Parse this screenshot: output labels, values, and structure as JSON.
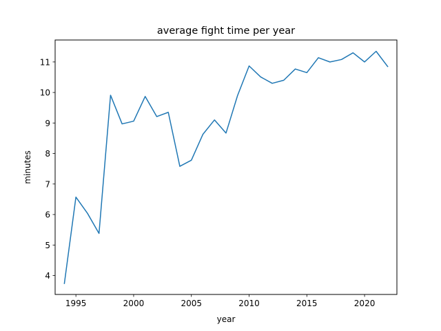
{
  "chart_data": {
    "type": "line",
    "title": "average fight time per year",
    "xlabel": "year",
    "ylabel": "minutes",
    "xlim": [
      1993.2,
      2022.8
    ],
    "ylim": [
      3.38,
      11.72
    ],
    "xticks": [
      1995,
      2000,
      2005,
      2010,
      2015,
      2020
    ],
    "yticks": [
      4,
      5,
      6,
      7,
      8,
      9,
      10,
      11
    ],
    "grid": false,
    "legend": "none",
    "series": [
      {
        "color": "#1f77b4",
        "x": [
          1994,
          1995,
          1996,
          1997,
          1998,
          1999,
          2000,
          2001,
          2002,
          2003,
          2004,
          2005,
          2006,
          2007,
          2008,
          2009,
          2010,
          2011,
          2012,
          2013,
          2014,
          2015,
          2016,
          2017,
          2018,
          2019,
          2020,
          2021,
          2022
        ],
        "y": [
          3.74,
          6.57,
          6.04,
          5.38,
          9.91,
          8.97,
          9.06,
          9.87,
          9.21,
          9.35,
          7.58,
          7.78,
          8.63,
          9.1,
          8.67,
          9.9,
          10.87,
          10.51,
          10.3,
          10.4,
          10.77,
          10.65,
          11.14,
          11.0,
          11.08,
          11.3,
          11.0,
          11.35,
          10.85
        ]
      }
    ]
  }
}
